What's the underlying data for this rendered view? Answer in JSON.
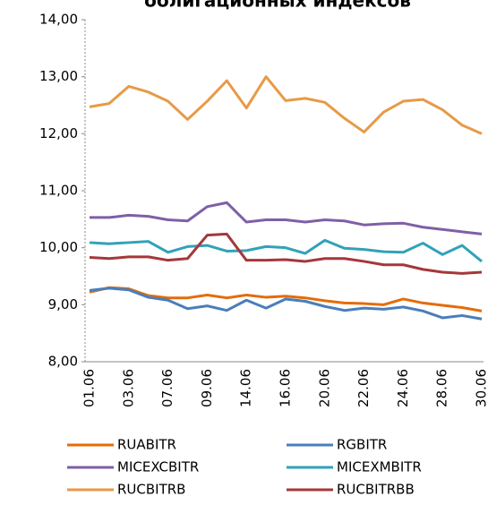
{
  "chart_data": {
    "type": "line",
    "title": "облигационных индексов",
    "categories": [
      "01.06",
      null,
      "03.06",
      null,
      "07.06",
      null,
      "09.06",
      null,
      "14.06",
      null,
      "16.06",
      null,
      "20.06",
      null,
      "22.06",
      null,
      "24.06",
      null,
      "28.06",
      null,
      "30.06"
    ],
    "series": [
      {
        "name": "RUABITR",
        "color": "#e46c0a",
        "values": [
          9.22,
          9.3,
          9.28,
          9.16,
          9.12,
          9.12,
          9.17,
          9.12,
          9.17,
          9.13,
          9.15,
          9.12,
          9.07,
          9.03,
          9.02,
          9.0,
          9.1,
          9.03,
          8.99,
          8.95,
          8.89
        ]
      },
      {
        "name": "RGBITR",
        "color": "#4a7ebb",
        "values": [
          9.25,
          9.29,
          9.26,
          9.13,
          9.08,
          8.93,
          8.98,
          8.9,
          9.08,
          8.94,
          9.1,
          9.06,
          8.97,
          8.9,
          8.94,
          8.92,
          8.96,
          8.89,
          8.77,
          8.81,
          8.75
        ]
      },
      {
        "name": "MICEXCBITR",
        "color": "#7f5fa6",
        "values": [
          10.53,
          10.53,
          10.57,
          10.55,
          10.49,
          10.47,
          10.72,
          10.79,
          10.45,
          10.49,
          10.49,
          10.45,
          10.49,
          10.47,
          10.4,
          10.42,
          10.43,
          10.36,
          10.32,
          10.28,
          10.24
        ]
      },
      {
        "name": "MICEXMBITR",
        "color": "#31a2b8",
        "values": [
          10.09,
          10.07,
          10.09,
          10.11,
          9.92,
          10.02,
          10.04,
          9.94,
          9.95,
          10.02,
          10.0,
          9.9,
          10.13,
          9.99,
          9.97,
          9.93,
          9.92,
          10.08,
          9.88,
          10.04,
          9.76
        ]
      },
      {
        "name": "RUCBITRB",
        "color": "#e79a46",
        "values": [
          12.47,
          12.53,
          12.83,
          12.73,
          12.57,
          12.25,
          12.57,
          12.93,
          12.45,
          13.0,
          12.58,
          12.62,
          12.55,
          12.27,
          12.03,
          12.38,
          12.57,
          12.6,
          12.42,
          12.15,
          12.0
        ]
      },
      {
        "name": "RUCBITRBB",
        "color": "#a5373a",
        "values": [
          9.83,
          9.81,
          9.84,
          9.84,
          9.78,
          9.81,
          10.22,
          10.24,
          9.78,
          9.78,
          9.79,
          9.76,
          9.81,
          9.81,
          9.76,
          9.7,
          9.7,
          9.62,
          9.57,
          9.55,
          9.57
        ]
      }
    ],
    "ylim": [
      8,
      14
    ],
    "yticks": [
      {
        "value": 8,
        "label": "8,00"
      },
      {
        "value": 9,
        "label": "9,00"
      },
      {
        "value": 10,
        "label": "10,00"
      },
      {
        "value": 11,
        "label": "11,00"
      },
      {
        "value": 12,
        "label": "12,00"
      },
      {
        "value": 13,
        "label": "13,00"
      },
      {
        "value": 14,
        "label": "14,00"
      }
    ],
    "grid": false,
    "legend": "bottom"
  }
}
